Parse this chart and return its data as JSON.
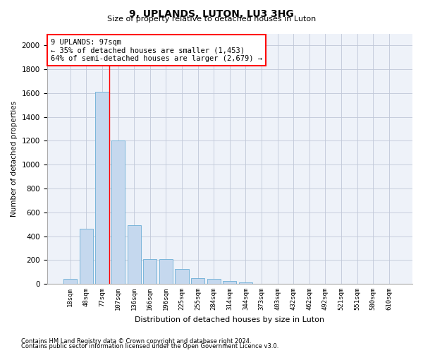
{
  "title": "9, UPLANDS, LUTON, LU3 3HG",
  "subtitle": "Size of property relative to detached houses in Luton",
  "xlabel": "Distribution of detached houses by size in Luton",
  "ylabel": "Number of detached properties",
  "bar_color": "#c5d8ee",
  "bar_edge_color": "#6aaed6",
  "categories": [
    "18sqm",
    "48sqm",
    "77sqm",
    "107sqm",
    "136sqm",
    "166sqm",
    "196sqm",
    "225sqm",
    "255sqm",
    "284sqm",
    "314sqm",
    "344sqm",
    "373sqm",
    "403sqm",
    "432sqm",
    "462sqm",
    "492sqm",
    "521sqm",
    "551sqm",
    "580sqm",
    "610sqm"
  ],
  "values": [
    40,
    460,
    1610,
    1200,
    490,
    210,
    210,
    125,
    50,
    40,
    25,
    15,
    0,
    0,
    0,
    0,
    0,
    0,
    0,
    0,
    0
  ],
  "ylim": [
    0,
    2100
  ],
  "yticks": [
    0,
    200,
    400,
    600,
    800,
    1000,
    1200,
    1400,
    1600,
    1800,
    2000
  ],
  "vline_x_idx": 2,
  "annotation_text": "9 UPLANDS: 97sqm\n← 35% of detached houses are smaller (1,453)\n64% of semi-detached houses are larger (2,679) →",
  "footer_line1": "Contains HM Land Registry data © Crown copyright and database right 2024.",
  "footer_line2": "Contains public sector information licensed under the Open Government Licence v3.0.",
  "background_color": "#ffffff",
  "plot_bg_color": "#eef2f9",
  "grid_color": "#c0c8d8"
}
